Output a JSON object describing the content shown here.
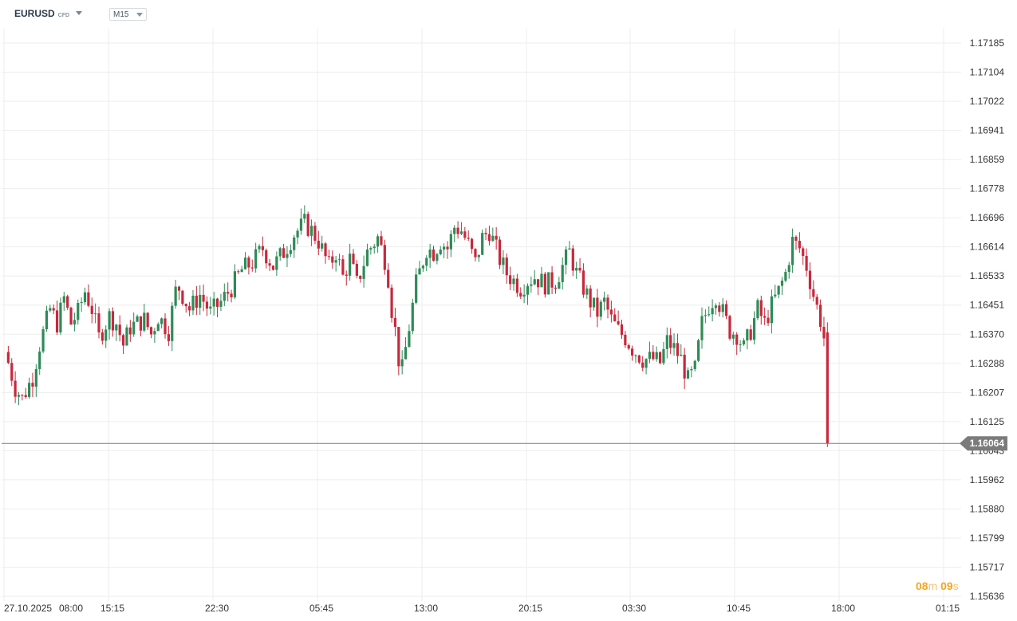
{
  "toolbar": {
    "symbol": "EURUSD",
    "symbol_type": "CFD",
    "timeframe": "M15"
  },
  "countdown": {
    "minutes": "08",
    "minutes_unit": "m",
    "seconds": "09",
    "seconds_unit": "s"
  },
  "colors": {
    "up": "#2e8b57",
    "down": "#c8283c",
    "grid": "#eeeeee",
    "price_line": "#7b7b7b",
    "price_tag": "#7b7b7b",
    "countdown": "#f5a623"
  },
  "chart_data": {
    "type": "candlestick",
    "instrument": "EURUSD",
    "timeframe": "M15",
    "y_ticks": [
      "1.17185",
      "1.17104",
      "1.17022",
      "1.16941",
      "1.16859",
      "1.16778",
      "1.16696",
      "1.16614",
      "1.16533",
      "1.16451",
      "1.16370",
      "1.16288",
      "1.16207",
      "1.16125",
      "1.16043",
      "1.15962",
      "1.15880",
      "1.15799",
      "1.15717",
      "1.15636"
    ],
    "x_ticks": [
      "27.10.2025",
      "08:00",
      "15:15",
      "22:30",
      "05:45",
      "13:00",
      "20:15",
      "03:30",
      "10:45",
      "18:00",
      "01:15"
    ],
    "ylim": [
      1.15636,
      1.17185
    ],
    "current_price": "1.16064",
    "grid": true,
    "close_path": [
      [
        1,
        1.1629
      ],
      [
        3,
        1.1622
      ],
      [
        5,
        1.1619
      ],
      [
        8,
        1.1625
      ],
      [
        10,
        1.1634
      ],
      [
        13,
        1.1644
      ],
      [
        15,
        1.164
      ],
      [
        17,
        1.1647
      ],
      [
        19,
        1.164
      ],
      [
        21,
        1.1643
      ],
      [
        23,
        1.1649
      ],
      [
        25,
        1.1644
      ],
      [
        27,
        1.1636
      ],
      [
        30,
        1.1642
      ],
      [
        32,
        1.164
      ],
      [
        34,
        1.1634
      ],
      [
        36,
        1.1639
      ],
      [
        38,
        1.164
      ],
      [
        40,
        1.1641
      ],
      [
        42,
        1.1637
      ],
      [
        44,
        1.1642
      ],
      [
        47,
        1.1638
      ],
      [
        49,
        1.1649
      ],
      [
        50,
        1.165
      ],
      [
        53,
        1.1644
      ],
      [
        56,
        1.1648
      ],
      [
        59,
        1.1643
      ],
      [
        62,
        1.1646
      ],
      [
        65,
        1.165
      ],
      [
        68,
        1.1655
      ],
      [
        71,
        1.1657
      ],
      [
        74,
        1.1661
      ],
      [
        77,
        1.1656
      ],
      [
        80,
        1.166
      ],
      [
        83,
        1.1665
      ],
      [
        86,
        1.1668
      ],
      [
        88,
        1.1666
      ],
      [
        90,
        1.1663
      ],
      [
        93,
        1.1656
      ],
      [
        95,
        1.166
      ],
      [
        97,
        1.1653
      ],
      [
        99,
        1.1658
      ],
      [
        101,
        1.1651
      ],
      [
        104,
        1.166
      ],
      [
        107,
        1.1664
      ],
      [
        109,
        1.1658
      ],
      [
        110,
        1.1653
      ],
      [
        111,
        1.1644
      ],
      [
        112,
        1.1638
      ],
      [
        113,
        1.163
      ],
      [
        114,
        1.1627
      ],
      [
        116,
        1.1639
      ],
      [
        118,
        1.1651
      ],
      [
        121,
        1.1661
      ],
      [
        123,
        1.166
      ],
      [
        125,
        1.1663
      ],
      [
        127,
        1.1661
      ],
      [
        129,
        1.1667
      ],
      [
        131,
        1.1666
      ],
      [
        133,
        1.1662
      ],
      [
        135,
        1.1657
      ],
      [
        137,
        1.1664
      ],
      [
        139,
        1.1666
      ],
      [
        142,
        1.1658
      ],
      [
        144,
        1.1654
      ],
      [
        146,
        1.1652
      ],
      [
        148,
        1.165
      ],
      [
        150,
        1.1652
      ],
      [
        152,
        1.1653
      ],
      [
        155,
        1.1651
      ],
      [
        158,
        1.1652
      ],
      [
        160,
        1.1656
      ],
      [
        162,
        1.166
      ],
      [
        164,
        1.1654
      ],
      [
        166,
        1.165
      ],
      [
        168,
        1.1646
      ],
      [
        170,
        1.1643
      ],
      [
        172,
        1.1646
      ],
      [
        174,
        1.1641
      ],
      [
        176,
        1.1638
      ],
      [
        178,
        1.1636
      ],
      [
        180,
        1.1633
      ],
      [
        183,
        1.163
      ],
      [
        186,
        1.163
      ],
      [
        188,
        1.1629
      ],
      [
        190,
        1.1635
      ],
      [
        192,
        1.1633
      ],
      [
        194,
        1.163
      ],
      [
        196,
        1.1624
      ],
      [
        198,
        1.1627
      ],
      [
        200,
        1.164
      ],
      [
        202,
        1.1645
      ],
      [
        204,
        1.1648
      ],
      [
        206,
        1.1643
      ],
      [
        208,
        1.1638
      ],
      [
        210,
        1.1637
      ],
      [
        212,
        1.1633
      ],
      [
        214,
        1.1638
      ],
      [
        216,
        1.1644
      ],
      [
        218,
        1.164
      ],
      [
        220,
        1.1645
      ],
      [
        222,
        1.1649
      ],
      [
        224,
        1.1654
      ],
      [
        226,
        1.1663
      ],
      [
        228,
        1.1661
      ],
      [
        230,
        1.1656
      ],
      [
        232,
        1.1648
      ],
      [
        234,
        1.1641
      ],
      [
        235,
        1.1636
      ],
      [
        236,
        1.16064
      ]
    ]
  }
}
